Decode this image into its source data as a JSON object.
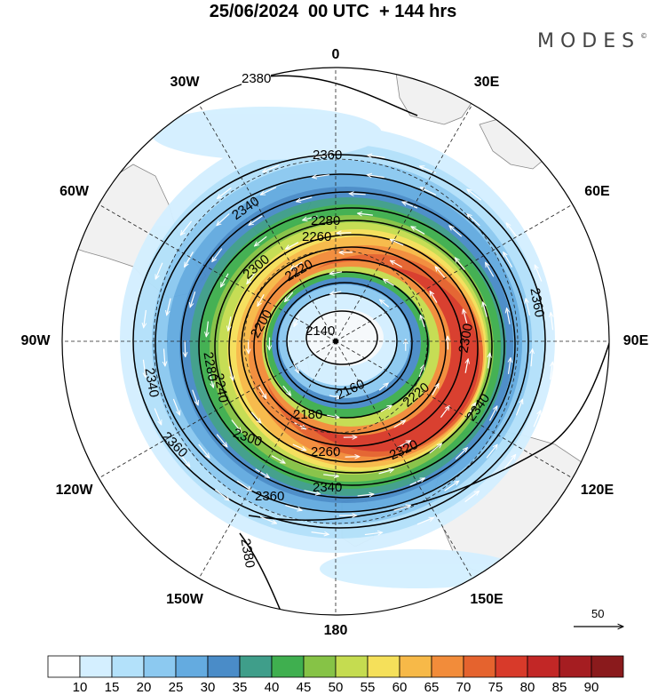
{
  "header": {
    "title": "25/06/2024  00 UTC  + 144 hrs",
    "brand": "MODES",
    "brand_mark": "©"
  },
  "map": {
    "projection": "north-polar-stereographic",
    "longitude_labels": [
      {
        "text": "0",
        "lon": 0
      },
      {
        "text": "30E",
        "lon": 30
      },
      {
        "text": "60E",
        "lon": 60
      },
      {
        "text": "90E",
        "lon": 90
      },
      {
        "text": "120E",
        "lon": 120
      },
      {
        "text": "150E",
        "lon": 150
      },
      {
        "text": "180",
        "lon": 180
      },
      {
        "text": "150W",
        "lon": -150
      },
      {
        "text": "120W",
        "lon": -120
      },
      {
        "text": "90W",
        "lon": -90
      },
      {
        "text": "60W",
        "lon": -60
      },
      {
        "text": "30W",
        "lon": -30
      }
    ],
    "contour_labels": [
      "2380",
      "2360",
      "2340",
      "2280",
      "2260",
      "2300",
      "2220",
      "2200",
      "2140",
      "2160",
      "2180",
      "2280",
      "2300",
      "2240",
      "2260",
      "2320",
      "2340",
      "2360",
      "2380",
      "2360",
      "2340",
      "2360",
      "2220",
      "2300",
      "2340"
    ],
    "wind_reference": {
      "value": "50"
    }
  },
  "colorbar": {
    "ticks": [
      "10",
      "15",
      "20",
      "25",
      "30",
      "35",
      "40",
      "45",
      "50",
      "55",
      "60",
      "65",
      "70",
      "75",
      "80",
      "85",
      "90"
    ],
    "colors": [
      "#ffffff",
      "#d4efff",
      "#b3e1fa",
      "#8cc9f0",
      "#64abe0",
      "#4a8cc8",
      "#3f9e8a",
      "#3faf4f",
      "#86c346",
      "#c5dc50",
      "#f5e05a",
      "#f7b948",
      "#f28c3a",
      "#e5632e",
      "#d83a2a",
      "#c22726",
      "#a51d21",
      "#8a1a1c"
    ]
  }
}
